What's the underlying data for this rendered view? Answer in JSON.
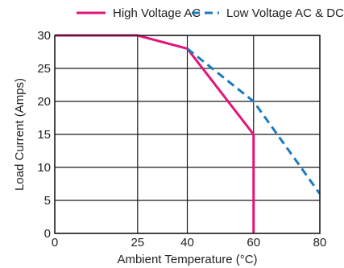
{
  "chart_data": {
    "type": "line",
    "title": "",
    "xlabel": "Ambient Temperature (°C)",
    "ylabel": "Load Current (Amps)",
    "xlim": [
      0,
      80
    ],
    "ylim": [
      0,
      30
    ],
    "x_ticks": [
      0,
      25,
      40,
      60,
      80
    ],
    "y_ticks": [
      0,
      5,
      10,
      15,
      20,
      25,
      30
    ],
    "grid": true,
    "legend_position": "top",
    "series": [
      {
        "name": "High Voltage AC",
        "color": "#e0157a",
        "style": "solid",
        "points": [
          [
            0,
            30
          ],
          [
            25,
            30
          ],
          [
            40,
            28
          ],
          [
            60,
            15
          ],
          [
            60,
            0
          ]
        ]
      },
      {
        "name": "Low Voltage AC & DC",
        "color": "#1a7abf",
        "style": "dashed",
        "points": [
          [
            40,
            28
          ],
          [
            60,
            20
          ],
          [
            80,
            6
          ]
        ]
      }
    ]
  }
}
